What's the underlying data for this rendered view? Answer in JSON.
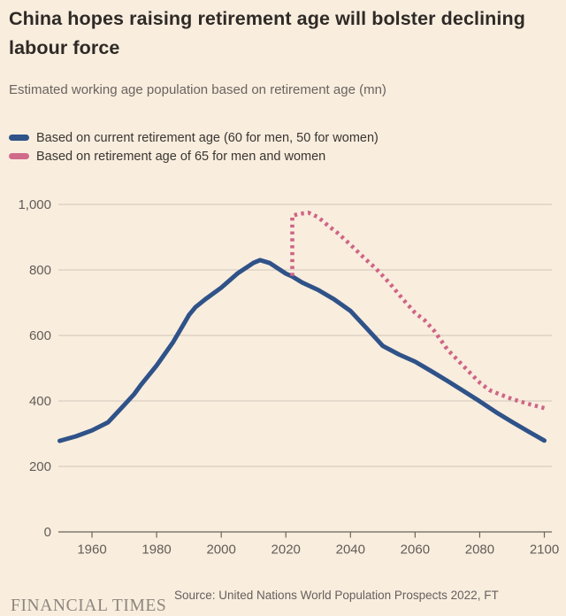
{
  "title": "China hopes raising retirement age will bolster declining labour force",
  "subtitle": "Estimated working age population based on retirement age (mn)",
  "legend": [
    {
      "label": "Based on current retirement age (60 for men, 50 for women)",
      "color": "#2F5288",
      "style": "solid"
    },
    {
      "label": "Based on retirement age of 65 for men and women",
      "color": "#D06A8B",
      "style": "dashed"
    }
  ],
  "footer": {
    "brand": "FINANCIAL TIMES",
    "source": "Source: United Nations World Population Prospects 2022, FT"
  },
  "colors": {
    "background": "#F9EDDE",
    "current_line": "#2F5288",
    "age65_line": "#CE6585",
    "gridline": "#CFC5B5",
    "axis": "#6B645C"
  },
  "chart_data": {
    "type": "line",
    "title": "China hopes raising retirement age will bolster declining labour force",
    "subtitle": "Estimated working age population based on retirement age (mn)",
    "unit": "mn",
    "xlim": [
      1950,
      2100
    ],
    "ylim": [
      0,
      1050
    ],
    "x_ticks": [
      1960,
      1980,
      2000,
      2020,
      2040,
      2060,
      2080,
      2100
    ],
    "y_ticks": [
      0,
      200,
      400,
      600,
      800,
      1000
    ],
    "grid": "horizontal",
    "legend_position": "top-left",
    "series": [
      {
        "name": "Based on current retirement age (60 for men, 50 for women)",
        "color": "#2F5288",
        "dash": false,
        "points": [
          [
            1950,
            278
          ],
          [
            1955,
            292
          ],
          [
            1960,
            310
          ],
          [
            1965,
            335
          ],
          [
            1970,
            388
          ],
          [
            1973,
            420
          ],
          [
            1975,
            447
          ],
          [
            1980,
            508
          ],
          [
            1985,
            578
          ],
          [
            1988,
            628
          ],
          [
            1990,
            662
          ],
          [
            1992,
            686
          ],
          [
            1995,
            710
          ],
          [
            2000,
            746
          ],
          [
            2005,
            789
          ],
          [
            2010,
            822
          ],
          [
            2012,
            830
          ],
          [
            2015,
            821
          ],
          [
            2020,
            789
          ],
          [
            2022,
            780
          ],
          [
            2025,
            762
          ],
          [
            2030,
            739
          ],
          [
            2035,
            710
          ],
          [
            2040,
            675
          ],
          [
            2045,
            622
          ],
          [
            2050,
            568
          ],
          [
            2055,
            542
          ],
          [
            2060,
            520
          ],
          [
            2065,
            491
          ],
          [
            2070,
            461
          ],
          [
            2075,
            430
          ],
          [
            2080,
            399
          ],
          [
            2085,
            366
          ],
          [
            2090,
            336
          ],
          [
            2095,
            307
          ],
          [
            2100,
            279
          ]
        ]
      },
      {
        "name": "Based on retirement age of 65 for men and women",
        "color": "#CE6585",
        "dash": true,
        "points": [
          [
            2022,
            782
          ],
          [
            2022,
            965
          ],
          [
            2024,
            971
          ],
          [
            2027,
            975
          ],
          [
            2030,
            961
          ],
          [
            2033,
            936
          ],
          [
            2036,
            913
          ],
          [
            2040,
            877
          ],
          [
            2044,
            839
          ],
          [
            2048,
            803
          ],
          [
            2052,
            761
          ],
          [
            2056,
            713
          ],
          [
            2060,
            669
          ],
          [
            2063,
            646
          ],
          [
            2066,
            613
          ],
          [
            2070,
            557
          ],
          [
            2075,
            506
          ],
          [
            2080,
            456
          ],
          [
            2083,
            433
          ],
          [
            2086,
            421
          ],
          [
            2090,
            406
          ],
          [
            2095,
            391
          ],
          [
            2100,
            378
          ]
        ]
      }
    ]
  }
}
